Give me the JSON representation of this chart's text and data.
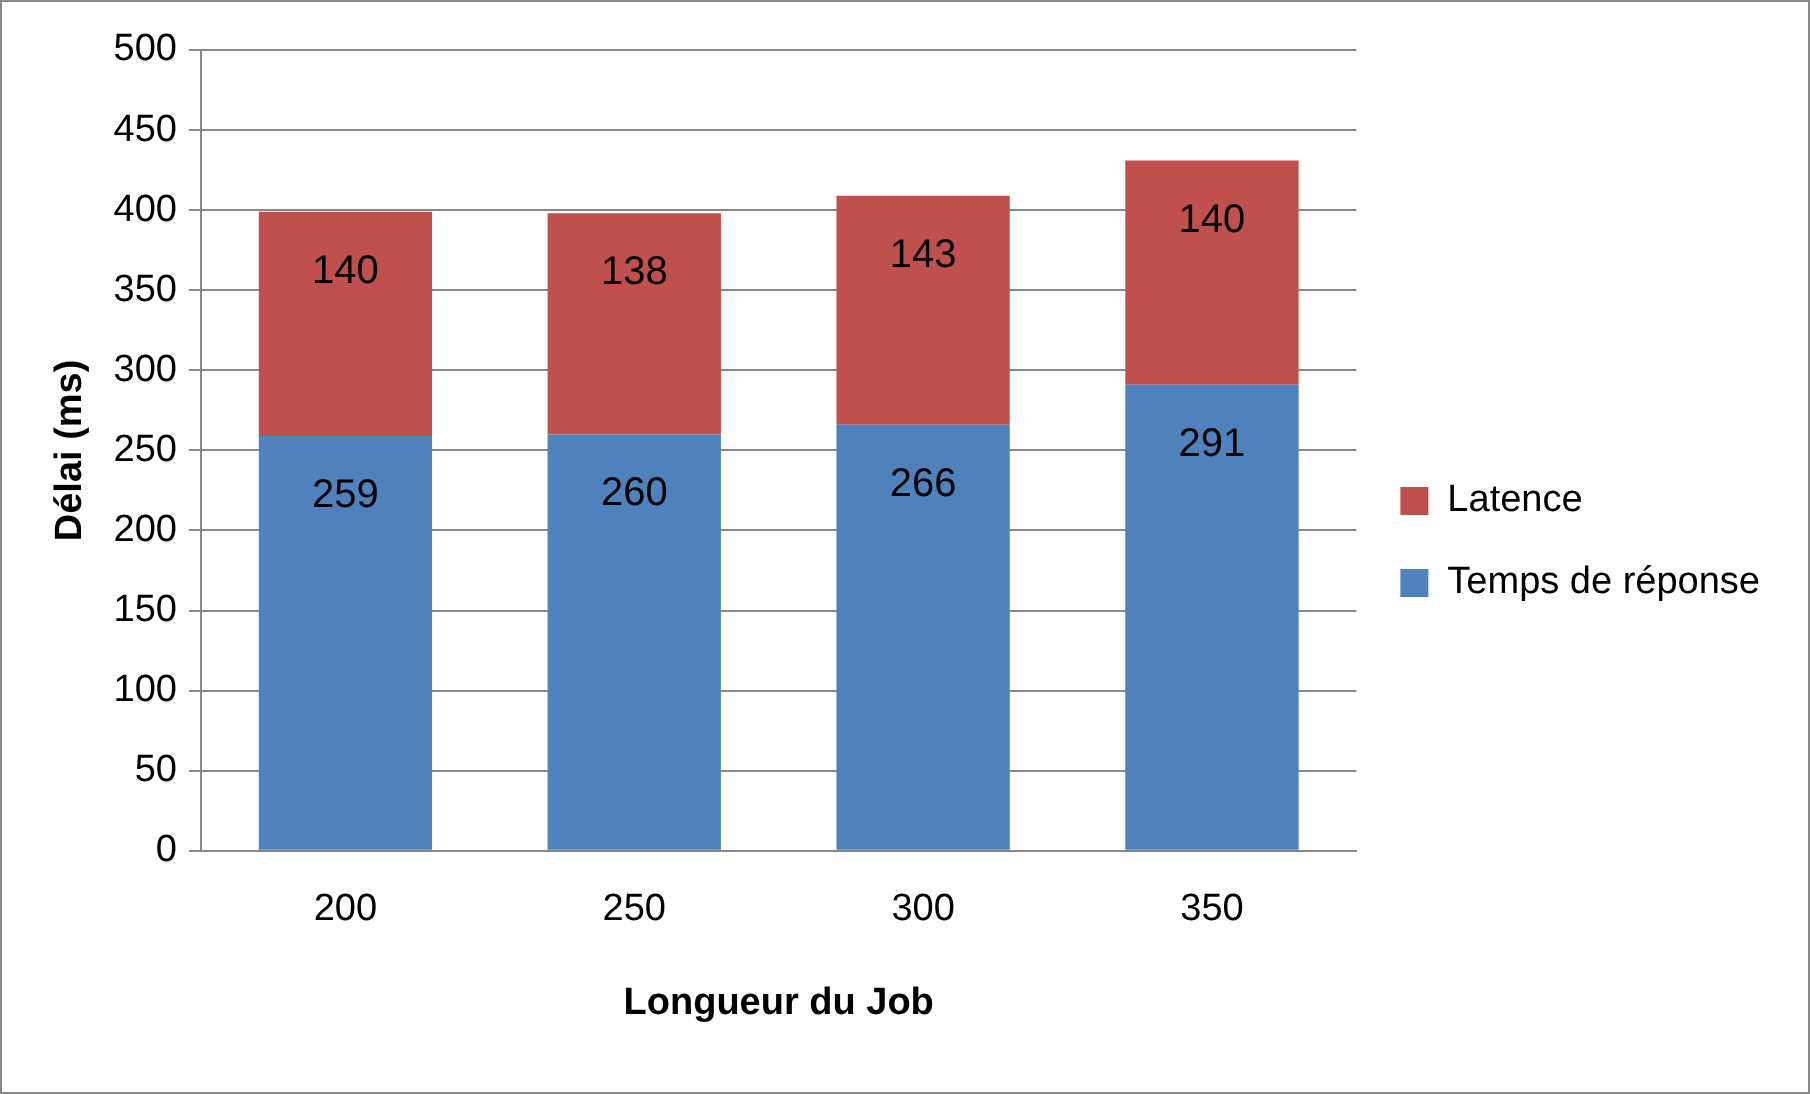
{
  "chart_data": {
    "type": "bar",
    "xlabel": "Longueur du Job",
    "ylabel": "Délai (ms)",
    "categories": [
      "200",
      "250",
      "300",
      "350"
    ],
    "stacked": true,
    "series": [
      {
        "name": "Temps de réponse",
        "color": "#4f81bd",
        "values": [
          259,
          260,
          266,
          291
        ]
      },
      {
        "name": "Latence",
        "color": "#c0504d",
        "values": [
          140,
          138,
          143,
          140
        ]
      }
    ],
    "ylim": [
      0,
      500
    ],
    "yticks": [
      0,
      50,
      100,
      150,
      200,
      250,
      300,
      350,
      400,
      450,
      500
    ],
    "grid": "y",
    "legend": "right",
    "data_labels": true
  }
}
